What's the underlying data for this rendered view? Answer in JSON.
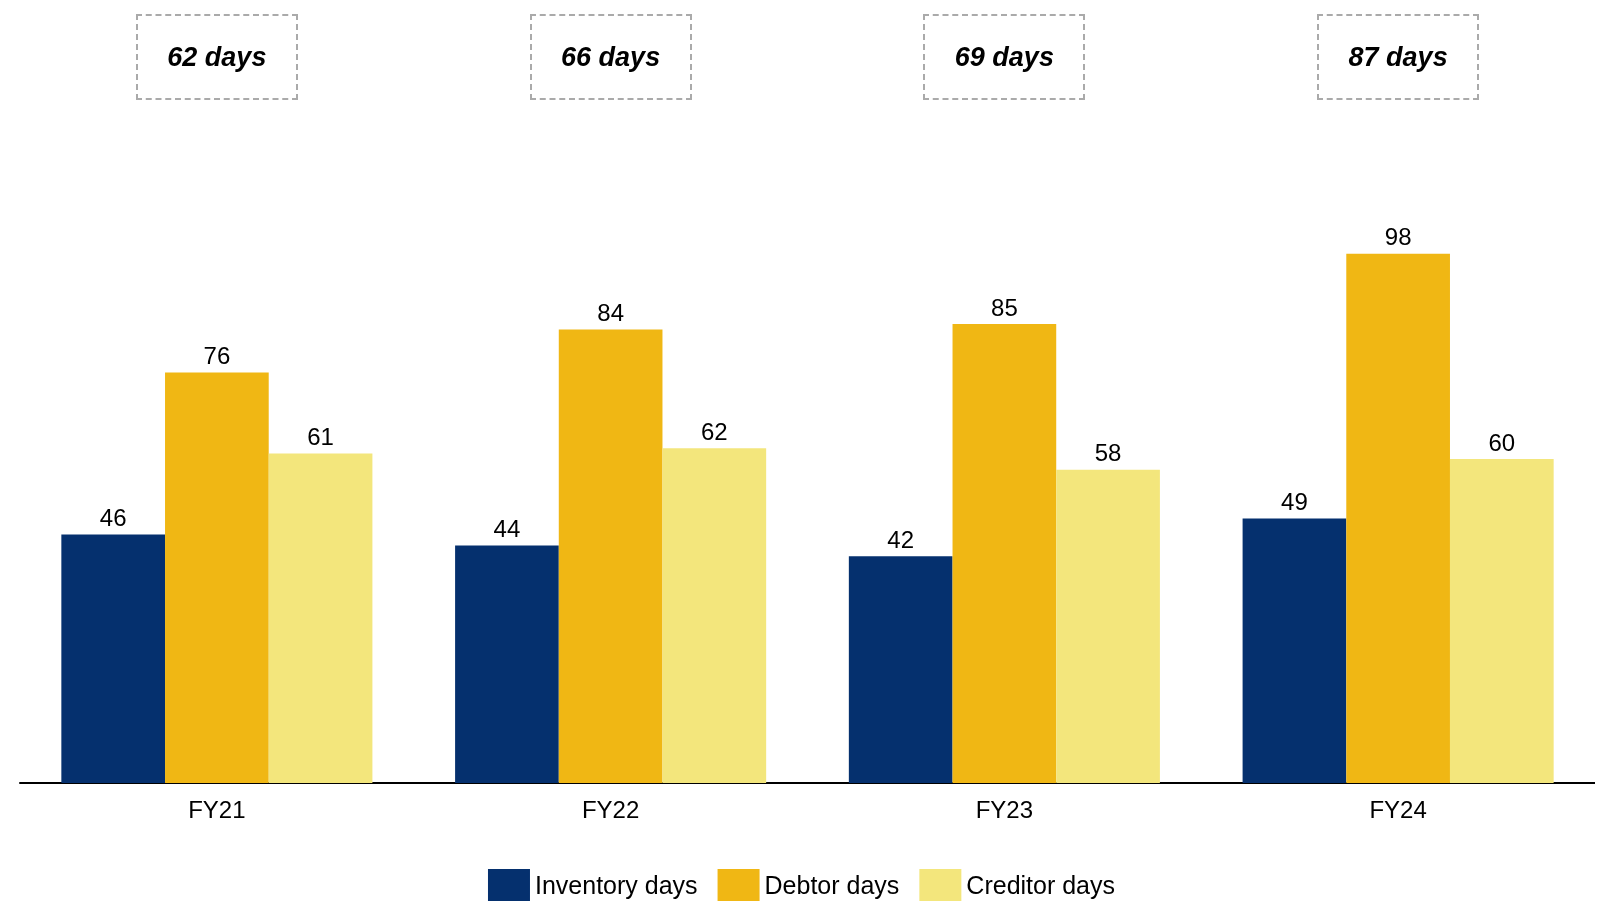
{
  "chart_data": {
    "type": "bar",
    "categories": [
      "FY21",
      "FY22",
      "FY23",
      "FY24"
    ],
    "series": [
      {
        "name": "Inventory days",
        "color": "#05306e",
        "values": [
          46,
          44,
          42,
          49
        ]
      },
      {
        "name": "Debtor days",
        "color": "#f0b714",
        "values": [
          76,
          84,
          85,
          98
        ]
      },
      {
        "name": "Creditor days",
        "color": "#f3e67c",
        "values": [
          61,
          62,
          58,
          60
        ]
      }
    ],
    "data_labels": true,
    "legend": "bottom",
    "grid": false,
    "annotations": [
      "62 days",
      "66 days",
      "69 days",
      "87 days"
    ]
  }
}
